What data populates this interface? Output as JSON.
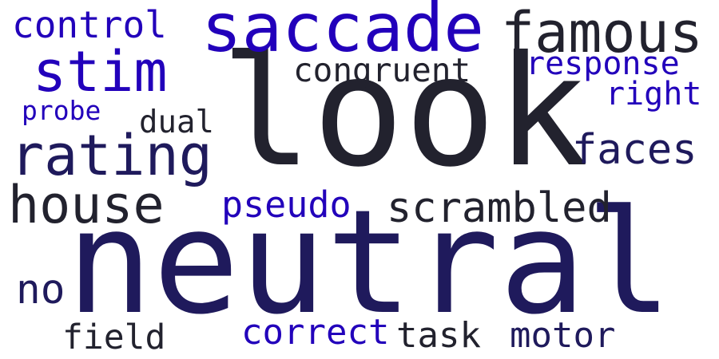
{
  "colors": {
    "background": "#ffffff",
    "dark": "#22222e",
    "navy": "#1f1a5c",
    "blue": "#2200bb"
  },
  "words": [
    {
      "text": "look",
      "color": "dark"
    },
    {
      "text": "neutral",
      "color": "navy"
    },
    {
      "text": "saccade",
      "color": "blue"
    },
    {
      "text": "famous",
      "color": "dark"
    },
    {
      "text": "stim",
      "color": "blue"
    },
    {
      "text": "control",
      "color": "blue"
    },
    {
      "text": "congruent",
      "color": "dark"
    },
    {
      "text": "response",
      "color": "blue"
    },
    {
      "text": "right",
      "color": "blue"
    },
    {
      "text": "probe",
      "color": "blue"
    },
    {
      "text": "dual",
      "color": "dark"
    },
    {
      "text": "rating",
      "color": "navy"
    },
    {
      "text": "faces",
      "color": "navy"
    },
    {
      "text": "house",
      "color": "dark"
    },
    {
      "text": "pseudo",
      "color": "blue"
    },
    {
      "text": "scrambled",
      "color": "dark"
    },
    {
      "text": "no",
      "color": "navy"
    },
    {
      "text": "field",
      "color": "dark"
    },
    {
      "text": "correct",
      "color": "blue"
    },
    {
      "text": "task",
      "color": "dark"
    },
    {
      "text": "motor",
      "color": "navy"
    }
  ]
}
